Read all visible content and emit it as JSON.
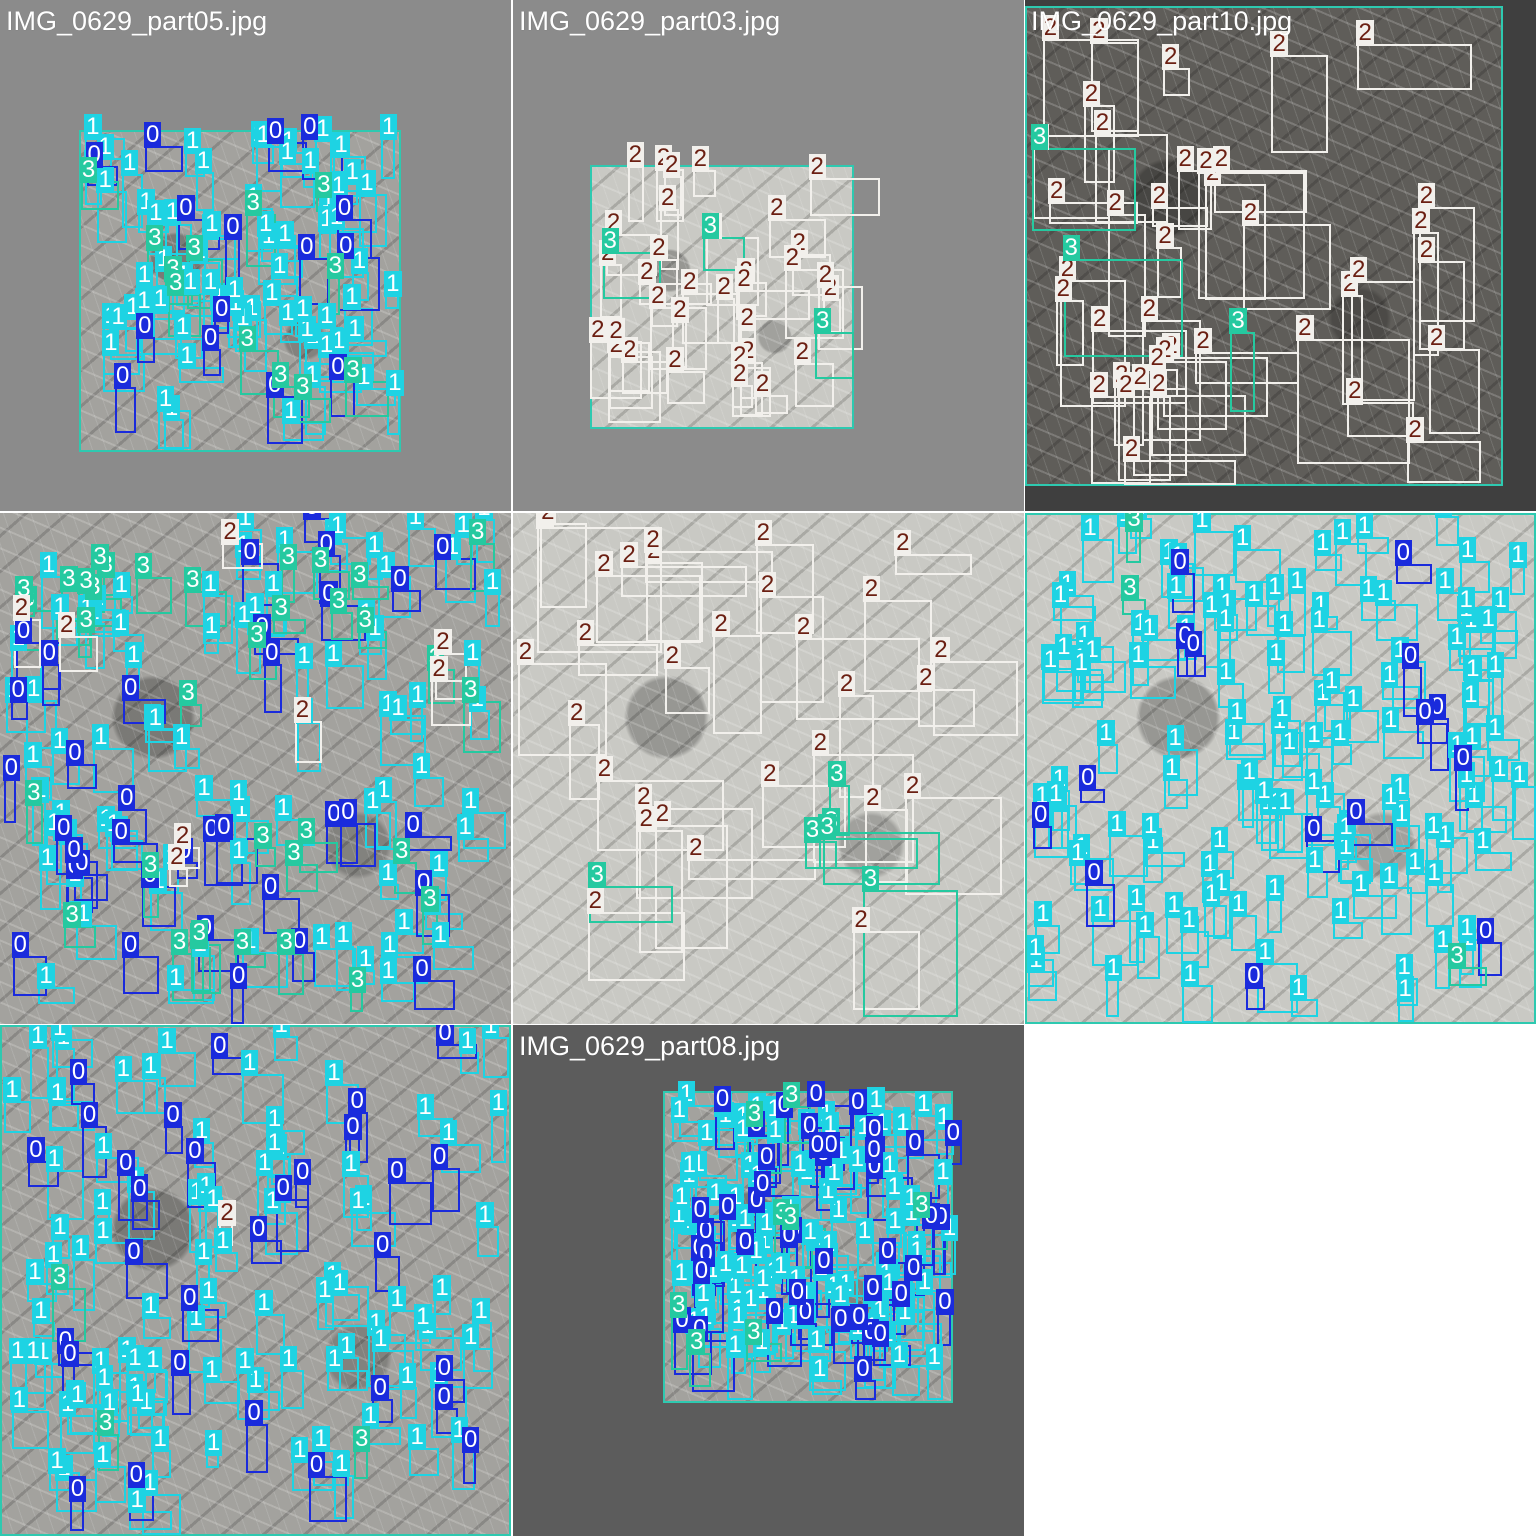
{
  "class_colors": {
    "0": {
      "bg": "#1a2bdc",
      "fg": "#ffffff"
    },
    "1": {
      "bg": "#1ed3e3",
      "fg": "#ffffff"
    },
    "2": {
      "bg": "#f2f0ec",
      "fg": "#6b1f12"
    },
    "3": {
      "bg": "#25c9a0",
      "fg": "#ffffff"
    }
  },
  "tiles": [
    {
      "filename": "IMG_0629_part05.jpg",
      "show_name": true
    },
    {
      "filename": "IMG_0629_part03.jpg",
      "show_name": true
    },
    {
      "filename": "IMG_0629_part10.jpg",
      "show_name": true
    },
    {
      "filename": "",
      "show_name": false
    },
    {
      "filename": "",
      "show_name": false
    },
    {
      "filename": "",
      "show_name": false
    },
    {
      "filename": "",
      "show_name": false
    },
    {
      "filename": "IMG_0629_part08.jpg",
      "show_name": true
    }
  ]
}
